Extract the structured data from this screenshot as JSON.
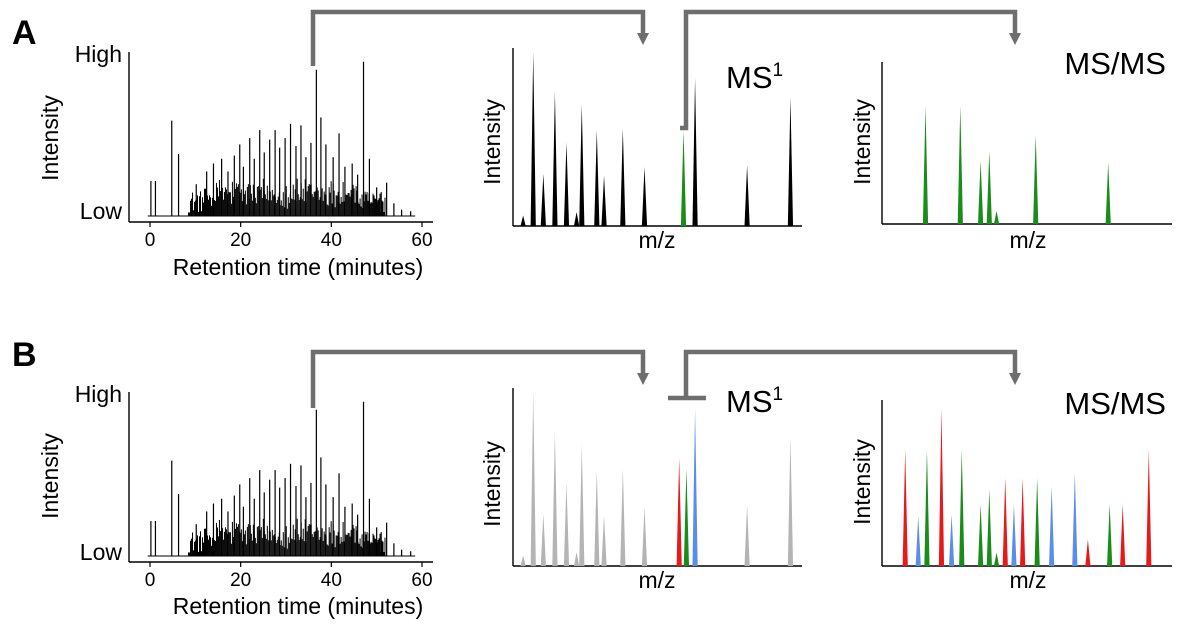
{
  "colors": {
    "black": "#000000",
    "gray": "#b4b4b4",
    "green": "#1a8c1a",
    "red": "#e41a1c",
    "blue": "#5b8ee6",
    "arrow": "#6e6e6e"
  },
  "panels": [
    {
      "letter": "A",
      "chromatogram": {
        "y_high": "High",
        "y_low": "Low",
        "ylabel": "Intensity",
        "xlabel": "Retention time (minutes)",
        "x_ticks": [
          "0",
          "20",
          "40",
          "60"
        ]
      },
      "ms1": {
        "title": "MS",
        "title_sup": "1",
        "ylabel": "Intensity",
        "xlabel": "m/z"
      },
      "msms": {
        "title": "MS/MS",
        "ylabel": "Intensity",
        "xlabel": "m/z"
      }
    },
    {
      "letter": "B",
      "chromatogram": {
        "y_high": "High",
        "y_low": "Low",
        "ylabel": "Intensity",
        "xlabel": "Retention time (minutes)",
        "x_ticks": [
          "0",
          "20",
          "40",
          "60"
        ]
      },
      "ms1": {
        "title": "MS",
        "title_sup": "1",
        "ylabel": "Intensity",
        "xlabel": "m/z"
      },
      "msms": {
        "title": "MS/MS",
        "ylabel": "Intensity",
        "xlabel": "m/z"
      }
    }
  ],
  "chart_data": [
    {
      "type": "bar",
      "panel": "A-chromatogram",
      "xlabel": "Retention time (minutes)",
      "ylabel": "Intensity",
      "xlim": [
        -3,
        62
      ],
      "ylim": [
        0,
        100
      ],
      "x_ticks": [
        0,
        20,
        40,
        60
      ],
      "peaks": [
        {
          "x": 0.2,
          "y": 22
        },
        {
          "x": 1.2,
          "y": 22
        },
        {
          "x": 4.8,
          "y": 60
        },
        {
          "x": 6.3,
          "y": 39
        },
        {
          "x": 10.2,
          "y": 20
        },
        {
          "x": 12.5,
          "y": 28
        },
        {
          "x": 14.0,
          "y": 33
        },
        {
          "x": 15.8,
          "y": 36
        },
        {
          "x": 17.2,
          "y": 28
        },
        {
          "x": 18.6,
          "y": 38
        },
        {
          "x": 19.8,
          "y": 45
        },
        {
          "x": 20.6,
          "y": 31
        },
        {
          "x": 22.0,
          "y": 49
        },
        {
          "x": 23.0,
          "y": 36
        },
        {
          "x": 24.2,
          "y": 54
        },
        {
          "x": 25.2,
          "y": 40
        },
        {
          "x": 26.4,
          "y": 48
        },
        {
          "x": 27.6,
          "y": 54
        },
        {
          "x": 28.6,
          "y": 43
        },
        {
          "x": 29.8,
          "y": 49
        },
        {
          "x": 31.0,
          "y": 58
        },
        {
          "x": 32.2,
          "y": 44
        },
        {
          "x": 33.3,
          "y": 57
        },
        {
          "x": 34.4,
          "y": 37
        },
        {
          "x": 35.5,
          "y": 46
        },
        {
          "x": 36.7,
          "y": 92
        },
        {
          "x": 37.7,
          "y": 62
        },
        {
          "x": 38.8,
          "y": 45
        },
        {
          "x": 40.4,
          "y": 37
        },
        {
          "x": 41.7,
          "y": 52
        },
        {
          "x": 43.0,
          "y": 31
        },
        {
          "x": 44.6,
          "y": 33
        },
        {
          "x": 45.8,
          "y": 26
        },
        {
          "x": 47.1,
          "y": 97
        },
        {
          "x": 48.4,
          "y": 36
        },
        {
          "x": 50.0,
          "y": 18
        },
        {
          "x": 51.0,
          "y": 15
        },
        {
          "x": 52.2,
          "y": 21
        },
        {
          "x": 53.8,
          "y": 8
        },
        {
          "x": 55.5,
          "y": 4
        },
        {
          "x": 57.5,
          "y": 3
        }
      ]
    },
    {
      "type": "bar",
      "panel": "A-MS1",
      "xlabel": "m/z",
      "ylabel": "Intensity",
      "peaks": [
        {
          "mz": 3.5,
          "intensity": 6,
          "color": "black"
        },
        {
          "mz": 7.0,
          "intensity": 100,
          "color": "black"
        },
        {
          "mz": 10.5,
          "intensity": 30,
          "color": "black"
        },
        {
          "mz": 14.5,
          "intensity": 77,
          "color": "black"
        },
        {
          "mz": 18.5,
          "intensity": 48,
          "color": "black"
        },
        {
          "mz": 22.0,
          "intensity": 8,
          "color": "black"
        },
        {
          "mz": 23.8,
          "intensity": 70,
          "color": "black"
        },
        {
          "mz": 29.0,
          "intensity": 55,
          "color": "black"
        },
        {
          "mz": 31.5,
          "intensity": 29,
          "color": "black"
        },
        {
          "mz": 38.0,
          "intensity": 56,
          "color": "black"
        },
        {
          "mz": 45.5,
          "intensity": 34,
          "color": "black"
        },
        {
          "mz": 59.0,
          "intensity": 55,
          "color": "green"
        },
        {
          "mz": 63.0,
          "intensity": 85,
          "color": "black"
        },
        {
          "mz": 81.0,
          "intensity": 35,
          "color": "black"
        },
        {
          "mz": 96.0,
          "intensity": 74,
          "color": "black"
        }
      ]
    },
    {
      "type": "bar",
      "panel": "A-MSMS",
      "xlabel": "m/z",
      "ylabel": "Intensity",
      "peaks": [
        {
          "mz": 15.0,
          "intensity": 73,
          "color": "green"
        },
        {
          "mz": 27.0,
          "intensity": 73,
          "color": "green"
        },
        {
          "mz": 34.0,
          "intensity": 39,
          "color": "green"
        },
        {
          "mz": 37.0,
          "intensity": 45,
          "color": "green"
        },
        {
          "mz": 39.5,
          "intensity": 8,
          "color": "green"
        },
        {
          "mz": 53.0,
          "intensity": 55,
          "color": "green"
        },
        {
          "mz": 78.0,
          "intensity": 38,
          "color": "green"
        }
      ]
    },
    {
      "type": "bar",
      "panel": "B-chromatogram",
      "xlabel": "Retention time (minutes)",
      "ylabel": "Intensity",
      "xlim": [
        -3,
        62
      ],
      "ylim": [
        0,
        100
      ],
      "x_ticks": [
        0,
        20,
        40,
        60
      ],
      "peaks": [
        {
          "x": 0.2,
          "y": 22
        },
        {
          "x": 1.2,
          "y": 22
        },
        {
          "x": 4.8,
          "y": 60
        },
        {
          "x": 6.3,
          "y": 39
        },
        {
          "x": 10.2,
          "y": 20
        },
        {
          "x": 12.5,
          "y": 28
        },
        {
          "x": 14.0,
          "y": 33
        },
        {
          "x": 15.8,
          "y": 36
        },
        {
          "x": 17.2,
          "y": 28
        },
        {
          "x": 18.6,
          "y": 38
        },
        {
          "x": 19.8,
          "y": 45
        },
        {
          "x": 20.6,
          "y": 31
        },
        {
          "x": 22.0,
          "y": 49
        },
        {
          "x": 23.0,
          "y": 36
        },
        {
          "x": 24.2,
          "y": 54
        },
        {
          "x": 25.2,
          "y": 40
        },
        {
          "x": 26.4,
          "y": 48
        },
        {
          "x": 27.6,
          "y": 54
        },
        {
          "x": 28.6,
          "y": 43
        },
        {
          "x": 29.8,
          "y": 49
        },
        {
          "x": 31.0,
          "y": 58
        },
        {
          "x": 32.2,
          "y": 44
        },
        {
          "x": 33.3,
          "y": 57
        },
        {
          "x": 34.4,
          "y": 37
        },
        {
          "x": 35.5,
          "y": 46
        },
        {
          "x": 36.7,
          "y": 92
        },
        {
          "x": 37.7,
          "y": 62
        },
        {
          "x": 38.8,
          "y": 45
        },
        {
          "x": 40.4,
          "y": 37
        },
        {
          "x": 41.7,
          "y": 52
        },
        {
          "x": 43.0,
          "y": 31
        },
        {
          "x": 44.6,
          "y": 33
        },
        {
          "x": 45.8,
          "y": 26
        },
        {
          "x": 47.1,
          "y": 97
        },
        {
          "x": 48.4,
          "y": 36
        },
        {
          "x": 50.0,
          "y": 18
        },
        {
          "x": 51.0,
          "y": 15
        },
        {
          "x": 52.2,
          "y": 21
        },
        {
          "x": 53.8,
          "y": 8
        },
        {
          "x": 55.5,
          "y": 4
        },
        {
          "x": 57.5,
          "y": 3
        }
      ]
    },
    {
      "type": "bar",
      "panel": "B-MS1",
      "xlabel": "m/z",
      "ylabel": "Intensity",
      "peaks": [
        {
          "mz": 3.5,
          "intensity": 6,
          "color": "gray"
        },
        {
          "mz": 7.0,
          "intensity": 100,
          "color": "gray"
        },
        {
          "mz": 10.5,
          "intensity": 30,
          "color": "gray"
        },
        {
          "mz": 14.5,
          "intensity": 77,
          "color": "gray"
        },
        {
          "mz": 18.5,
          "intensity": 48,
          "color": "gray"
        },
        {
          "mz": 22.0,
          "intensity": 8,
          "color": "gray"
        },
        {
          "mz": 23.8,
          "intensity": 70,
          "color": "gray"
        },
        {
          "mz": 29.0,
          "intensity": 55,
          "color": "gray"
        },
        {
          "mz": 31.5,
          "intensity": 29,
          "color": "gray"
        },
        {
          "mz": 38.0,
          "intensity": 56,
          "color": "gray"
        },
        {
          "mz": 45.5,
          "intensity": 34,
          "color": "gray"
        },
        {
          "mz": 57.5,
          "intensity": 62,
          "color": "red"
        },
        {
          "mz": 60.0,
          "intensity": 56,
          "color": "green"
        },
        {
          "mz": 63.0,
          "intensity": 90,
          "color": "blue"
        },
        {
          "mz": 81.0,
          "intensity": 35,
          "color": "gray"
        },
        {
          "mz": 96.0,
          "intensity": 74,
          "color": "gray"
        }
      ]
    },
    {
      "type": "bar",
      "panel": "B-MSMS",
      "xlabel": "m/z",
      "ylabel": "Intensity",
      "peaks": [
        {
          "mz": 8.0,
          "intensity": 70,
          "color": "red"
        },
        {
          "mz": 12.5,
          "intensity": 30,
          "color": "blue"
        },
        {
          "mz": 15.5,
          "intensity": 70,
          "color": "green"
        },
        {
          "mz": 20.5,
          "intensity": 95,
          "color": "red"
        },
        {
          "mz": 24.0,
          "intensity": 31,
          "color": "blue"
        },
        {
          "mz": 27.5,
          "intensity": 70,
          "color": "green"
        },
        {
          "mz": 34.0,
          "intensity": 37,
          "color": "green"
        },
        {
          "mz": 37.0,
          "intensity": 46,
          "color": "green"
        },
        {
          "mz": 39.5,
          "intensity": 8,
          "color": "green"
        },
        {
          "mz": 42.5,
          "intensity": 53,
          "color": "red"
        },
        {
          "mz": 45.5,
          "intensity": 37,
          "color": "blue"
        },
        {
          "mz": 48.5,
          "intensity": 53,
          "color": "red"
        },
        {
          "mz": 53.5,
          "intensity": 53,
          "color": "green"
        },
        {
          "mz": 58.5,
          "intensity": 48,
          "color": "blue"
        },
        {
          "mz": 66.5,
          "intensity": 56,
          "color": "blue"
        },
        {
          "mz": 71.0,
          "intensity": 16,
          "color": "red"
        },
        {
          "mz": 78.5,
          "intensity": 37,
          "color": "green"
        },
        {
          "mz": 83.0,
          "intensity": 37,
          "color": "red"
        },
        {
          "mz": 92.0,
          "intensity": 70,
          "color": "red"
        }
      ]
    }
  ]
}
